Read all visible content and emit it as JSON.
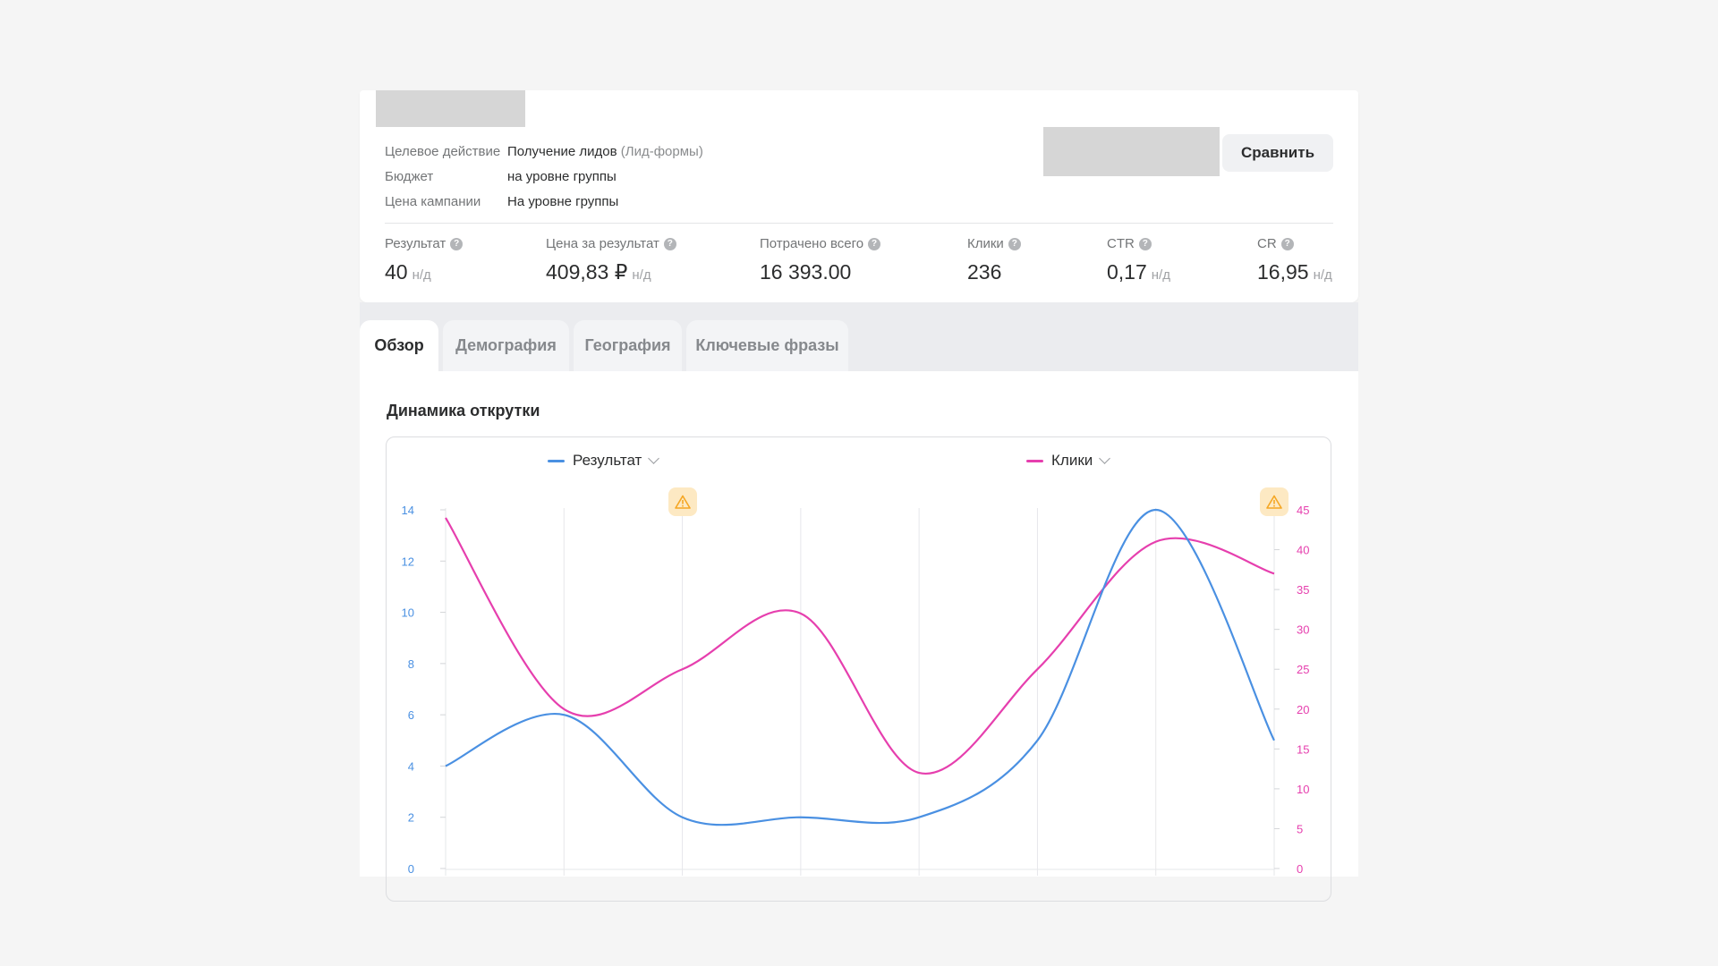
{
  "campaign": {
    "info": [
      {
        "label": "Целевое действие",
        "value": "Получение лидов",
        "extra": "(Лид-формы)"
      },
      {
        "label": "Бюджет",
        "value": "на уровне группы",
        "extra": ""
      },
      {
        "label": "Цена кампании",
        "value": "На уровне группы",
        "extra": ""
      }
    ],
    "compare_label": "Сравнить"
  },
  "metrics": [
    {
      "label": "Результат",
      "value": "40",
      "na": "н/д"
    },
    {
      "label": "Цена за результат",
      "value": "409,83 ₽",
      "na": "н/д"
    },
    {
      "label": "Потрачено всего",
      "value": "16 393.00",
      "na": ""
    },
    {
      "label": "Клики",
      "value": "236",
      "na": ""
    },
    {
      "label": "CTR",
      "value": "0,17",
      "na": "н/д"
    },
    {
      "label": "CR",
      "value": "16,95",
      "na": "н/д"
    }
  ],
  "tabs": [
    {
      "label": "Обзор",
      "active": true
    },
    {
      "label": "Демография",
      "active": false
    },
    {
      "label": "География",
      "active": false
    },
    {
      "label": "Ключевые фразы",
      "active": false
    }
  ],
  "section_title": "Динамика открутки",
  "legend": {
    "left": "Результат",
    "right": "Клики"
  },
  "colors": {
    "result": "#4a90e2",
    "clicks": "#e63fae",
    "warning": "#f5a623"
  },
  "icons": {
    "help": "question-circle-icon",
    "warning": "warning-triangle-icon",
    "dropdown": "chevron-down-icon"
  },
  "chart_data": {
    "type": "line",
    "x": [
      1,
      2,
      3,
      4,
      5,
      6,
      7,
      8
    ],
    "series": [
      {
        "name": "Результат",
        "axis": "left",
        "values": [
          4,
          6,
          2,
          2,
          2,
          5,
          14,
          5
        ]
      },
      {
        "name": "Клики",
        "axis": "right",
        "values": [
          44,
          20,
          25,
          32,
          12,
          25,
          41,
          37
        ]
      }
    ],
    "left_axis": {
      "ticks": [
        "0",
        "2",
        "4",
        "6",
        "8",
        "10",
        "12",
        "14"
      ],
      "range": [
        0,
        14
      ]
    },
    "right_axis": {
      "ticks": [
        "0",
        "5",
        "10",
        "15",
        "20",
        "25",
        "30",
        "35",
        "40",
        "45"
      ],
      "range": [
        0,
        45
      ]
    },
    "grid": "vertical",
    "warnings_at_x": [
      3,
      8
    ]
  }
}
